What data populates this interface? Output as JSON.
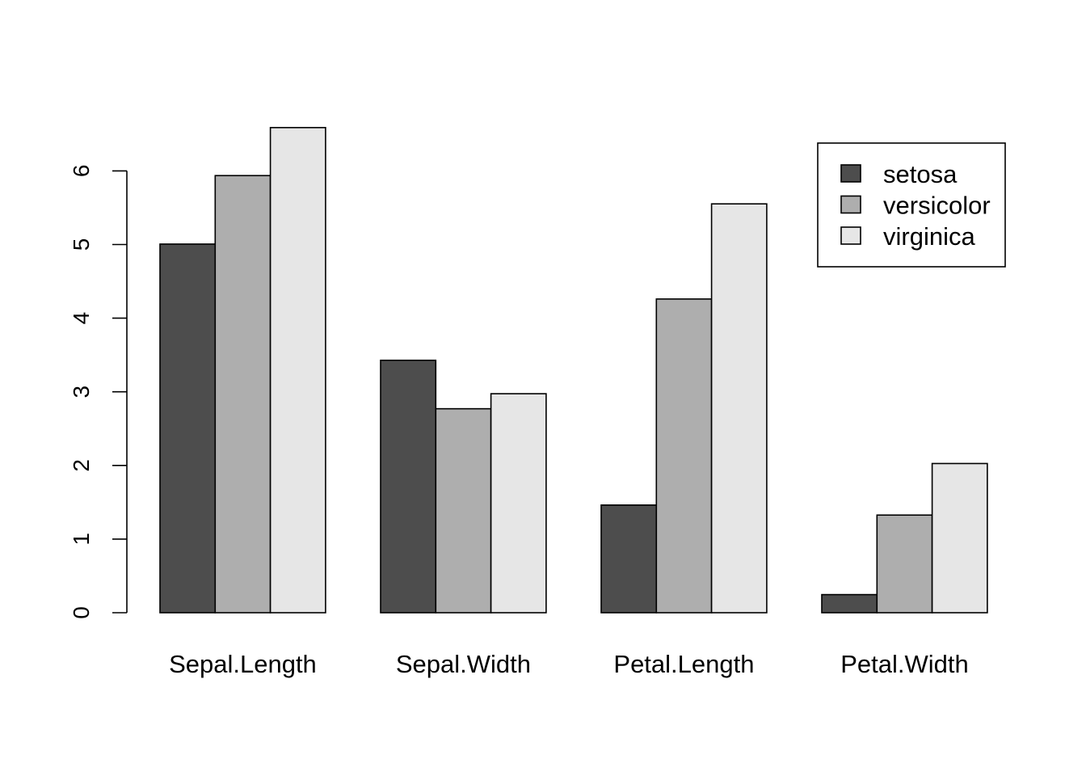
{
  "chart_data": {
    "type": "bar",
    "barmode": "grouped",
    "categories": [
      "Sepal.Length",
      "Sepal.Width",
      "Petal.Length",
      "Petal.Width"
    ],
    "series": [
      {
        "name": "setosa",
        "values": [
          5.006,
          3.428,
          1.462,
          0.246
        ],
        "color": "#4d4d4d"
      },
      {
        "name": "versicolor",
        "values": [
          5.936,
          2.77,
          4.26,
          1.326
        ],
        "color": "#aeaeae"
      },
      {
        "name": "virginica",
        "values": [
          6.588,
          2.974,
          5.552,
          2.026
        ],
        "color": "#e6e6e6"
      }
    ],
    "y_ticks": [
      "0",
      "1",
      "2",
      "3",
      "4",
      "5",
      "6"
    ],
    "ylim": [
      0,
      6.588
    ],
    "title": "",
    "xlabel": "",
    "ylabel": "",
    "legend": {
      "position": "top-right"
    },
    "grid": false
  }
}
